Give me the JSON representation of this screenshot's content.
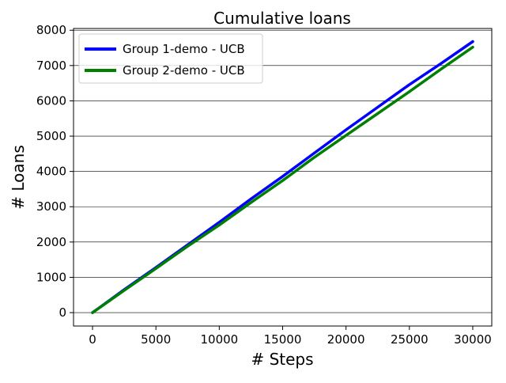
{
  "chart_data": {
    "type": "line",
    "title": "Cumulative loans",
    "xlabel": "# Steps",
    "ylabel": "# Loans",
    "xlim": [
      -1500,
      31500
    ],
    "ylim": [
      -380,
      8050
    ],
    "xticks": [
      0,
      5000,
      10000,
      15000,
      20000,
      25000,
      30000
    ],
    "xtick_labels": [
      "0",
      "5000",
      "10000",
      "15000",
      "20000",
      "25000",
      "30000"
    ],
    "yticks": [
      0,
      1000,
      2000,
      3000,
      4000,
      5000,
      6000,
      7000,
      8000
    ],
    "ytick_labels": [
      "0",
      "1000",
      "2000",
      "3000",
      "4000",
      "5000",
      "6000",
      "7000",
      "8000"
    ],
    "grid": "horizontal",
    "legend_position": "top-left",
    "series": [
      {
        "name": "Group 1-demo - UCB",
        "color": "#0000ff",
        "x": [
          0,
          2500,
          5000,
          7500,
          10000,
          12500,
          15000,
          17500,
          20000,
          22500,
          25000,
          27500,
          30000
        ],
        "y": [
          0,
          650,
          1280,
          1920,
          2560,
          3220,
          3860,
          4520,
          5180,
          5820,
          6460,
          7060,
          7680
        ]
      },
      {
        "name": "Group 2-demo - UCB",
        "color": "#008000",
        "x": [
          0,
          2500,
          5000,
          7500,
          10000,
          12500,
          15000,
          17500,
          20000,
          22500,
          25000,
          27500,
          30000
        ],
        "y": [
          0,
          630,
          1250,
          1880,
          2480,
          3120,
          3740,
          4400,
          5020,
          5640,
          6260,
          6900,
          7520
        ]
      }
    ]
  }
}
